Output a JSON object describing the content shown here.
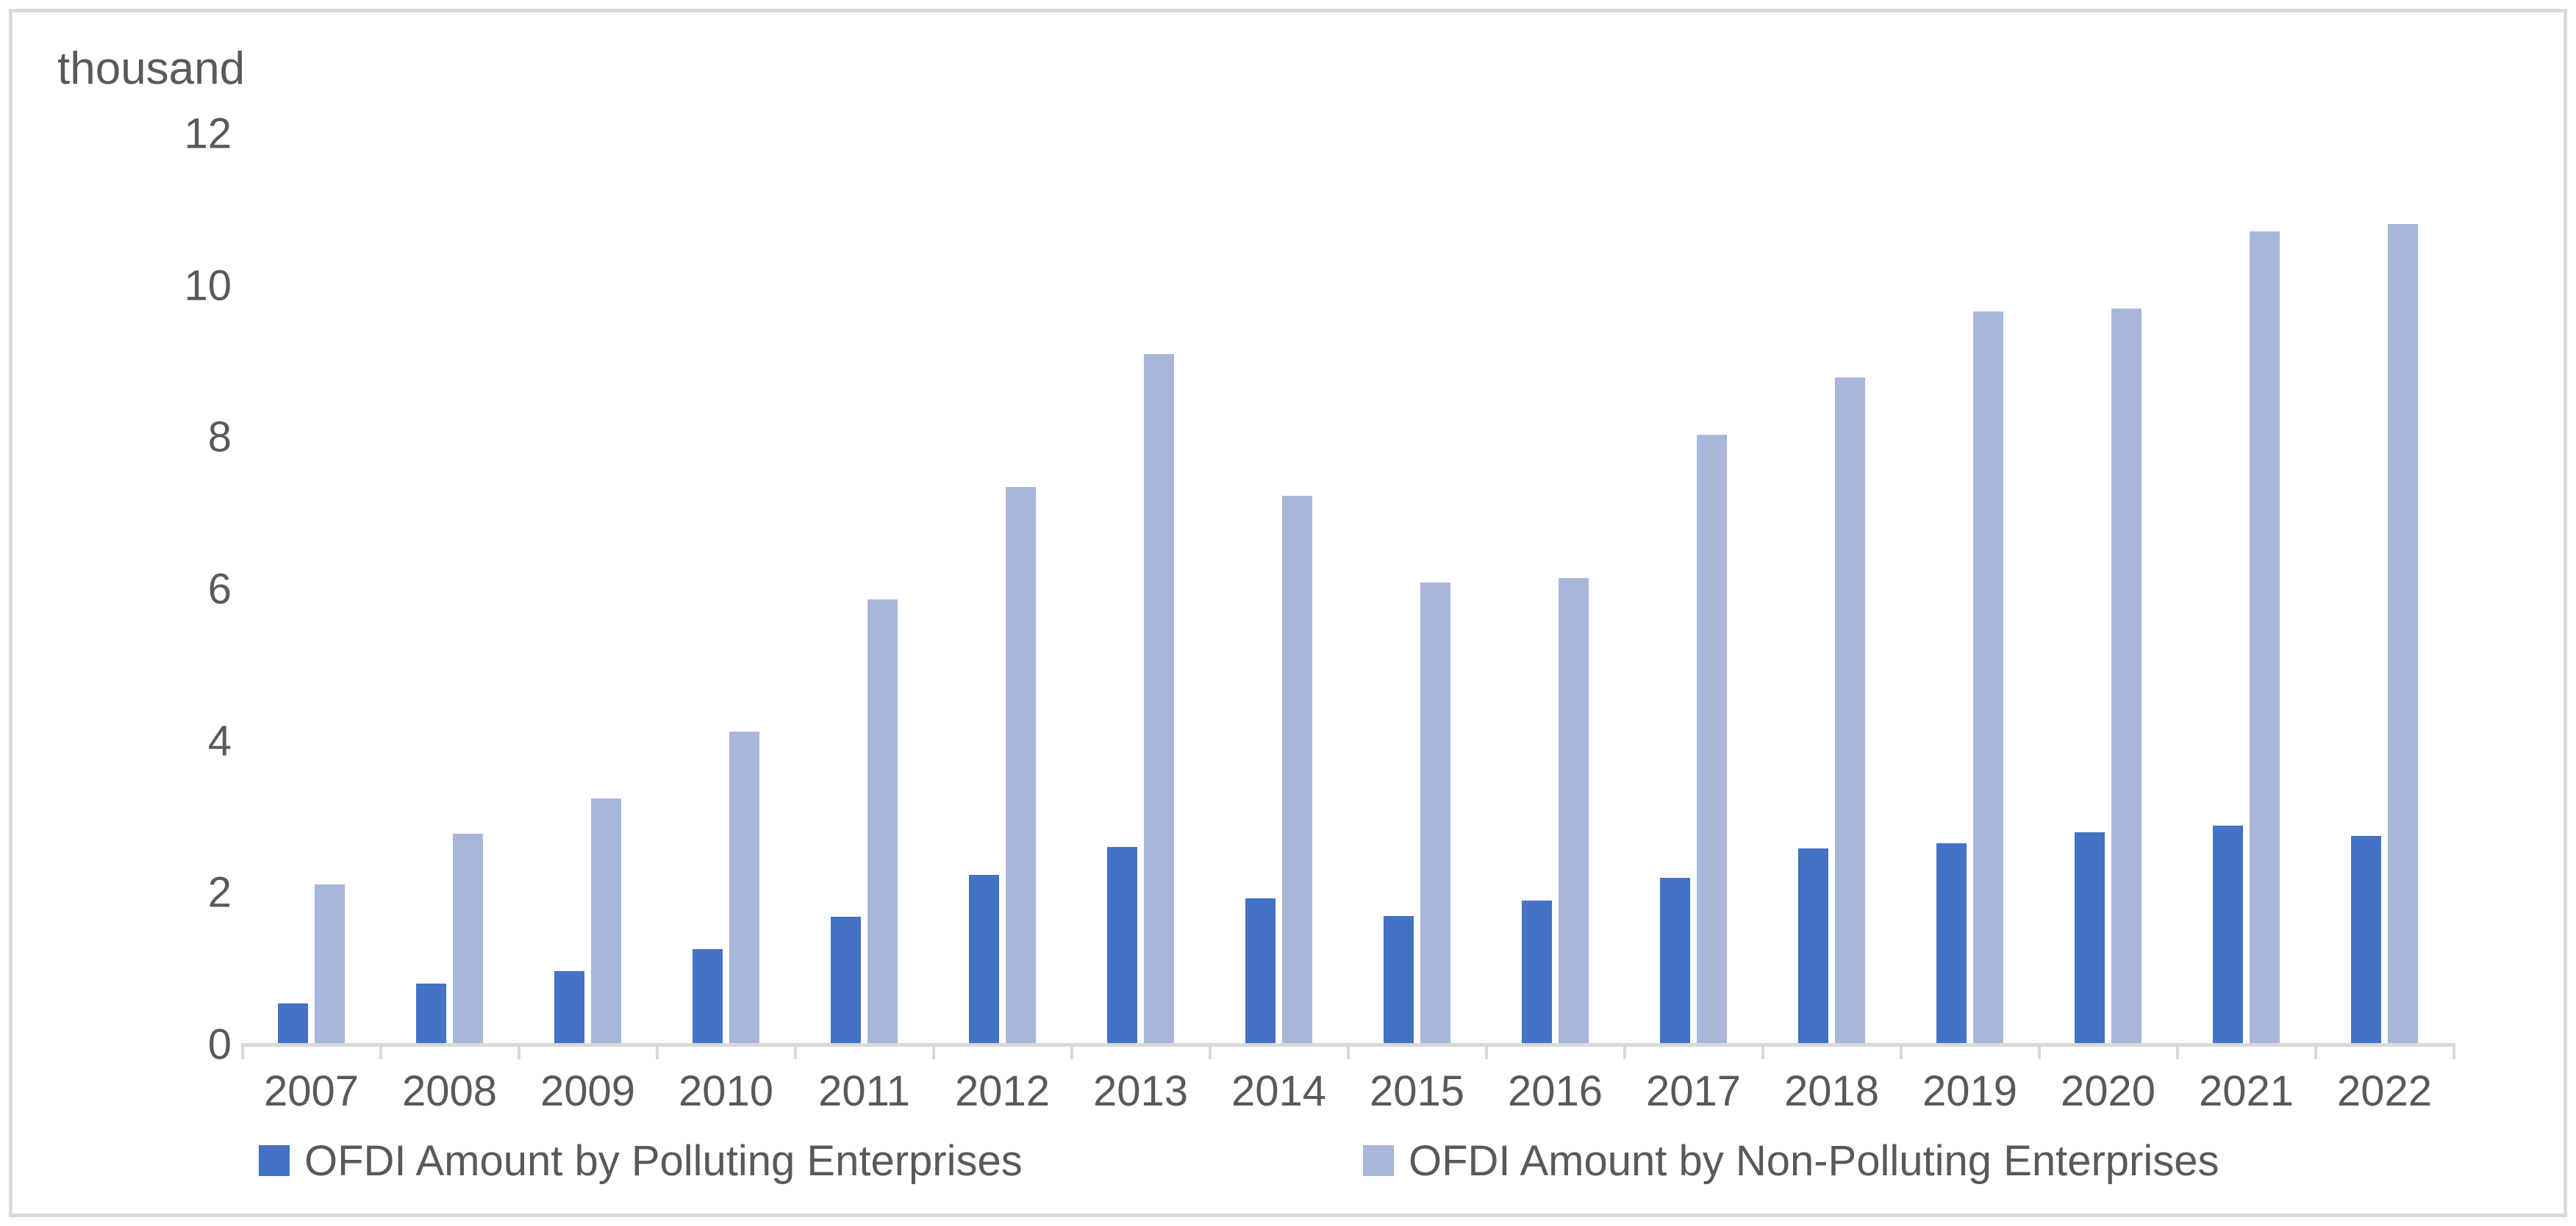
{
  "figure": {
    "unit_label": "thousand"
  },
  "chart_data": {
    "type": "bar",
    "title": "",
    "ylabel": "thousand",
    "xlabel": "",
    "categories": [
      "2007",
      "2008",
      "2009",
      "2010",
      "2011",
      "2012",
      "2013",
      "2014",
      "2015",
      "2016",
      "2017",
      "2018",
      "2019",
      "2020",
      "2021",
      "2022"
    ],
    "series": [
      {
        "name": "OFDI Amount by Polluting Enterprises",
        "color": "#4472c4",
        "values": [
          0.52,
          0.78,
          0.95,
          1.24,
          1.66,
          2.22,
          2.58,
          1.91,
          1.67,
          1.88,
          2.18,
          2.56,
          2.63,
          2.78,
          2.86,
          2.73
        ]
      },
      {
        "name": "OFDI Amount by Non-Polluting Enterprises",
        "color": "#a8b6db",
        "values": [
          2.09,
          2.76,
          3.22,
          4.1,
          5.85,
          7.33,
          9.08,
          7.21,
          6.07,
          6.13,
          8.01,
          8.77,
          9.64,
          9.68,
          10.69,
          10.79
        ]
      }
    ],
    "ylim": [
      0,
      12
    ],
    "yticks": [
      0,
      2,
      4,
      6,
      8,
      10,
      12
    ],
    "grid": false,
    "legend_position": "bottom",
    "axis_color": "#d9d9d9",
    "text_color": "#595959"
  }
}
